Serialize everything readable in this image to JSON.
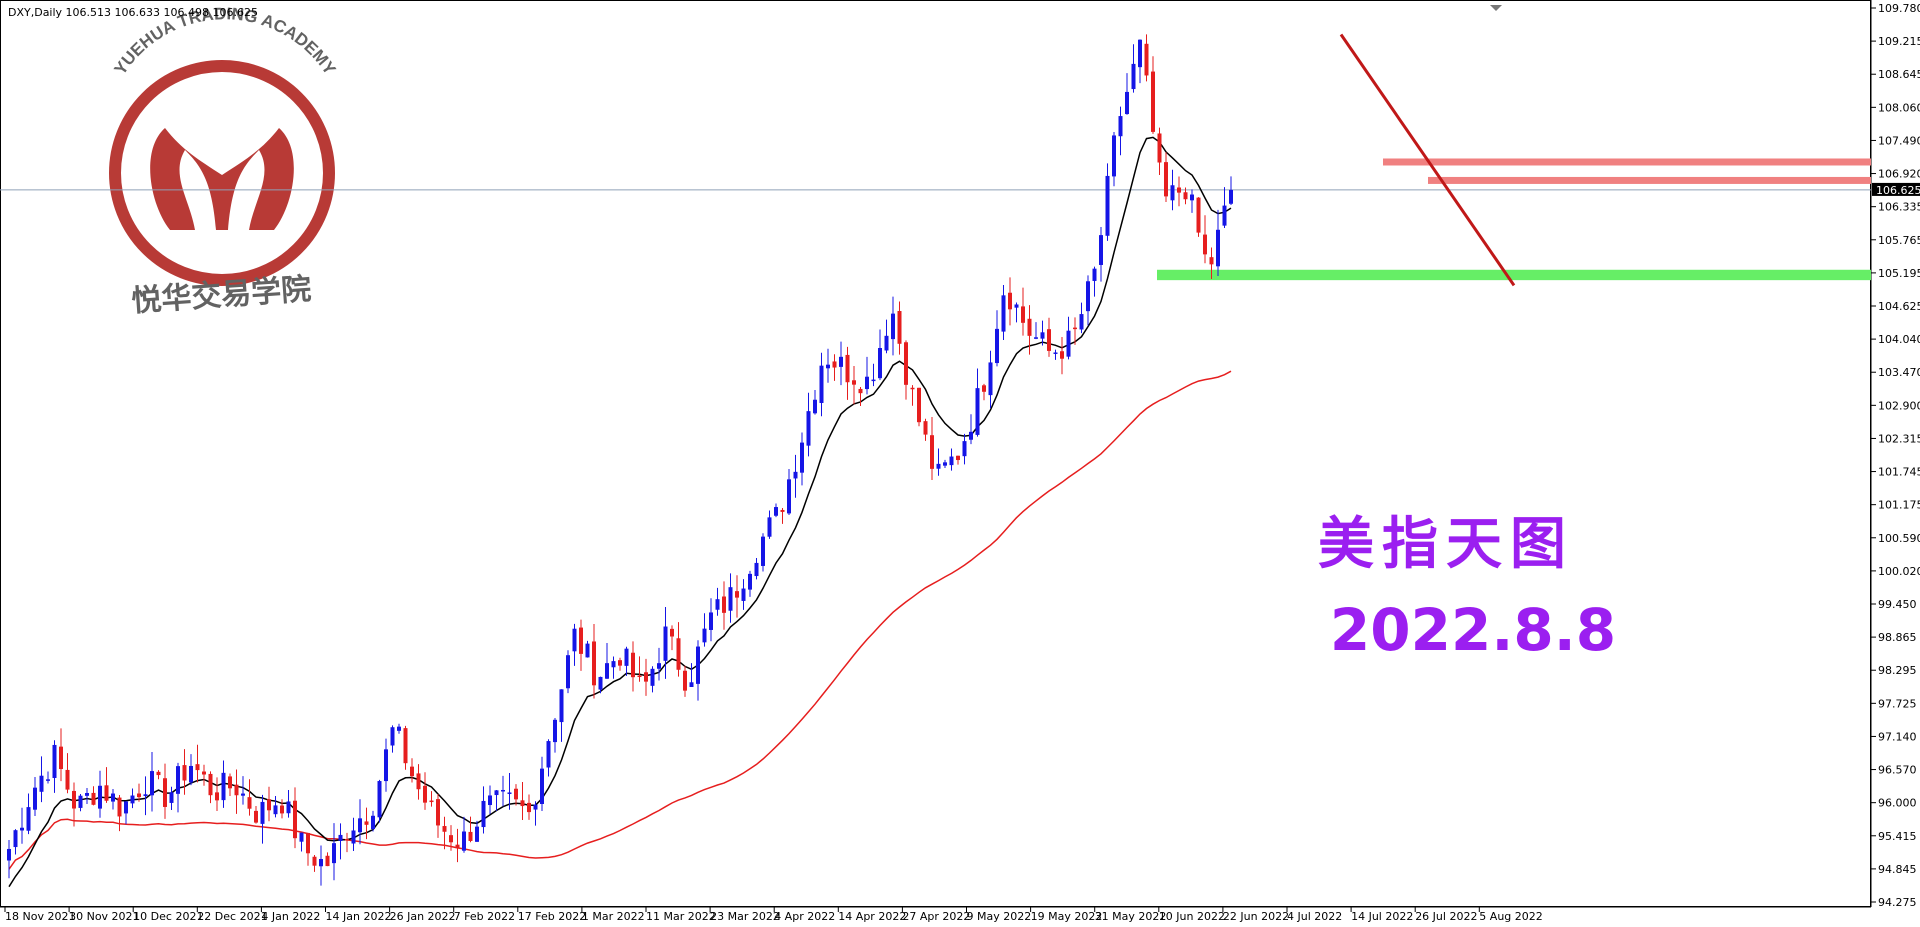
{
  "header": {
    "info": "DXY,Daily  106.513 106.633 106.498 106.625"
  },
  "watermark": {
    "academy_en": "YUEHUA TRADING ACADEMY",
    "academy_cn": "悦华交易学院",
    "icon": "yuehua-logo-icon",
    "color": "#b22a25"
  },
  "overlay": {
    "title": "美指天图",
    "date": "2022.8.8"
  },
  "colors": {
    "bull": "#1515e6",
    "bear": "#e61e1e",
    "ma_fast": "#000000",
    "ma_slow": "#e61e1e",
    "trendline": "#c01818",
    "resistance_zone": "#f08080",
    "support_zone": "#66ee66",
    "price_line": "#8fa0b8",
    "accent_text": "#9b1ff0"
  },
  "chart_data": {
    "type": "candlestick",
    "symbol": "DXY",
    "timeframe": "Daily",
    "current_price": "106.625",
    "ylim": [
      94.275,
      109.78
    ],
    "y_ticks": [
      "109.780",
      "109.215",
      "108.645",
      "108.060",
      "107.490",
      "106.920",
      "106.335",
      "105.765",
      "105.195",
      "104.625",
      "104.040",
      "103.470",
      "102.900",
      "102.315",
      "101.745",
      "101.175",
      "100.590",
      "100.020",
      "99.450",
      "98.865",
      "98.295",
      "97.725",
      "97.140",
      "96.570",
      "96.000",
      "95.415",
      "94.845",
      "94.275"
    ],
    "x_ticks": [
      "18 Nov 2021",
      "30 Nov 2021",
      "10 Dec 2021",
      "22 Dec 2021",
      "4 Jan 2022",
      "14 Jan 2022",
      "26 Jan 2022",
      "7 Feb 2022",
      "17 Feb 2022",
      "1 Mar 2022",
      "11 Mar 2022",
      "23 Mar 2022",
      "4 Apr 2022",
      "14 Apr 2022",
      "27 Apr 2022",
      "9 May 2022",
      "19 May 2022",
      "31 May 2022",
      "10 Jun 2022",
      "22 Jun 2022",
      "4 Jul 2022",
      "14 Jul 2022",
      "26 Jul 2022",
      "5 Aug 2022"
    ],
    "anchors": [
      95.2,
      96.2,
      96.8,
      95.9,
      96.3,
      95.9,
      96.4,
      96.1,
      96.7,
      96.2,
      96.3,
      95.8,
      96.1,
      95.2,
      94.9,
      95.6,
      95.9,
      97.3,
      96.3,
      95.6,
      95.3,
      95.9,
      96.0,
      95.8,
      97.4,
      98.9,
      98.2,
      98.6,
      97.9,
      98.9,
      98.1,
      99.2,
      99.6,
      100.4,
      101.0,
      102.3,
      103.8,
      103.5,
      103.3,
      104.6,
      102.9,
      101.6,
      102.1,
      103.2,
      105.0,
      104.2,
      103.8,
      104.0,
      105.2,
      107.8,
      109.1,
      106.4,
      106.7,
      105.2,
      106.6
    ],
    "bar_count": 189,
    "ma_fast_label": "fast moving average (black)",
    "ma_slow_label": "slow moving average (red)",
    "trendline": {
      "from": [
        92,
        109.32
      ],
      "to": [
        113,
        104.97
      ]
    },
    "zones": [
      {
        "kind": "resistance",
        "from_bar": 92,
        "low": 107.07,
        "high": 107.17
      },
      {
        "kind": "resistance",
        "from_bar": 99,
        "low": 106.73,
        "high": 106.85
      },
      {
        "kind": "support",
        "from_bar": 1,
        "low": 105.06,
        "high": 105.24
      }
    ]
  }
}
